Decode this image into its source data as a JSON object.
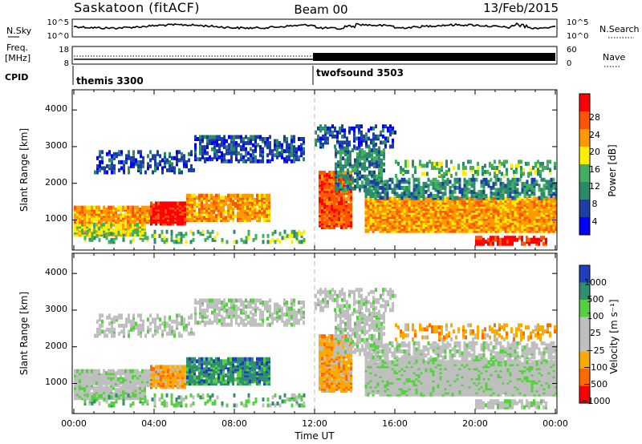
{
  "header": {
    "station": "Saskatoon (fitACF)",
    "beam": "Beam 00",
    "date": "13/Feb/2015"
  },
  "colors": {
    "power_scale": [
      "#0000ff",
      "#1c3fa3",
      "#2a8a6a",
      "#40b060",
      "#ffee00",
      "#ff9900",
      "#ff5500",
      "#ff0000"
    ],
    "velocity_scale": [
      "#1f3fbf",
      "#2f8f6f",
      "#54d040",
      "#bfbfbf",
      "#bfbfbf",
      "#ffa800",
      "#ff6a00",
      "#ff0000"
    ]
  },
  "chart_data": [
    {
      "type": "line",
      "panel": "noise",
      "left_label": "N.Sky",
      "right_label": "N.Search",
      "left_ticks": [
        "10^5",
        "10^0"
      ],
      "right_ticks": [
        "10^5",
        "10^0"
      ],
      "x_range_hours": [
        0,
        24
      ]
    },
    {
      "type": "line",
      "panel": "frequency",
      "left_label_1": "Freq.",
      "left_label_2": "[MHz]",
      "right_label": "Nave",
      "left_ticks": [
        "18",
        "8"
      ],
      "right_ticks": [
        "60",
        "0"
      ],
      "cpid_label": "CPID",
      "modes": [
        {
          "name": "themis 3300",
          "start_hour": 0,
          "end_hour": 12
        },
        {
          "name": "twofsound 3503",
          "start_hour": 12,
          "end_hour": 24
        }
      ]
    },
    {
      "type": "heatmap",
      "panel": "power",
      "ylabel": "Slant Range [km]",
      "ylim": [
        180,
        4550
      ],
      "yticks": [
        "4000",
        "3000",
        "2000",
        "1000"
      ],
      "colorbar_label": "Power [dB]",
      "colorbar_ticks": [
        "28",
        "24",
        "20",
        "16",
        "12",
        "8",
        "4"
      ],
      "colorbar_range": [
        0,
        30
      ]
    },
    {
      "type": "heatmap",
      "panel": "velocity",
      "ylabel": "Slant Range [km]",
      "ylim": [
        180,
        4550
      ],
      "yticks": [
        "4000",
        "3000",
        "2000",
        "1000"
      ],
      "colorbar_label": "Velocity [m s⁻¹]",
      "colorbar_ticks": [
        "1000",
        "500",
        "100",
        "25",
        "−25",
        "−100",
        "−500",
        "−1000"
      ]
    }
  ],
  "xaxis": {
    "label": "Time UT",
    "ticks": [
      "00:00",
      "04:00",
      "08:00",
      "12:00",
      "16:00",
      "20:00",
      "00:00"
    ]
  }
}
